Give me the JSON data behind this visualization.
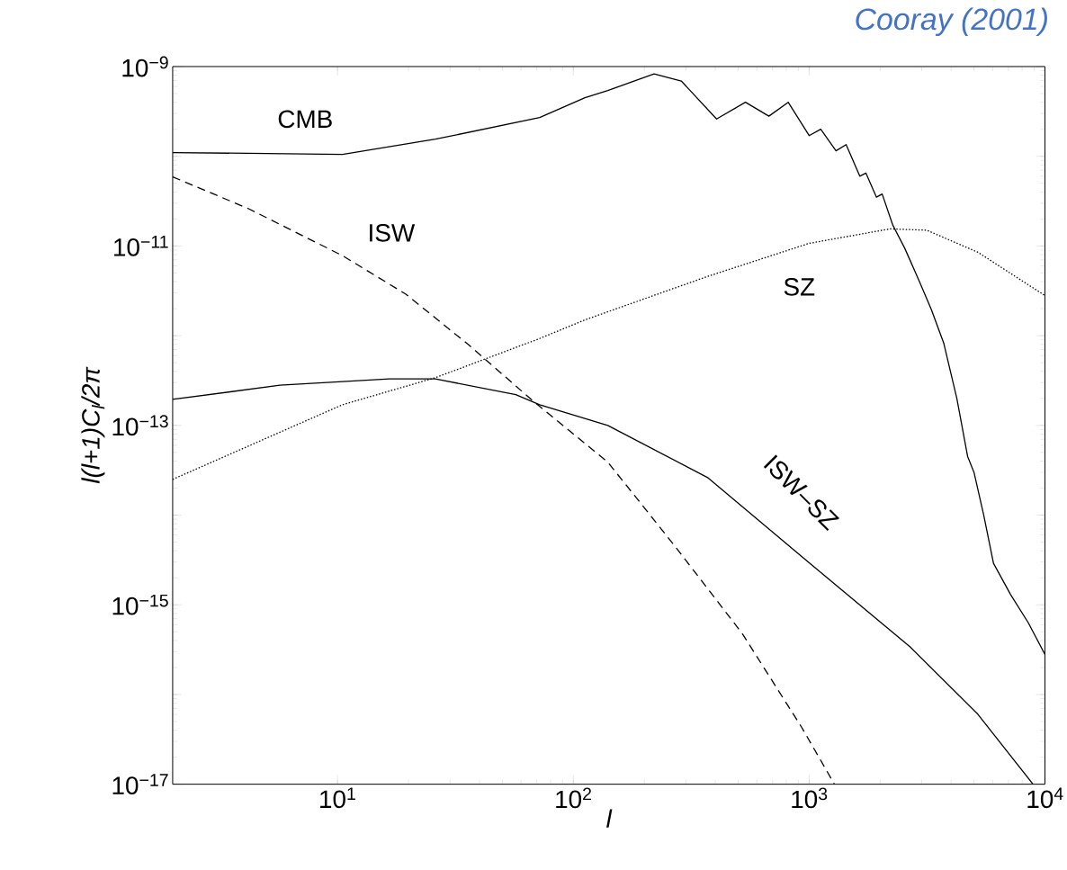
{
  "chart_data": {
    "type": "line",
    "xlabel": "l",
    "ylabel": "l(l+1)C$_{l}$/2π",
    "annotations": [
      "Cooray (2001)"
    ],
    "log": "xy",
    "xlim": [
      2,
      10000
    ],
    "ylim": [
      1e-17,
      1e-09
    ],
    "xticks": [
      {
        "value": 10,
        "label": "10$^{1}$"
      },
      {
        "value": 100,
        "label": "10$^{2}$"
      },
      {
        "value": 1000,
        "label": "10$^{3}$"
      },
      {
        "value": 10000,
        "label": "10$^{4}$"
      }
    ],
    "yticks": [
      {
        "value": 1e-17,
        "label": "10$^{−17}$"
      },
      {
        "value": 1e-16,
        "label": null
      },
      {
        "value": 1e-15,
        "label": "10$^{−15}$"
      },
      {
        "value": 1e-14,
        "label": null
      },
      {
        "value": 1e-13,
        "label": "10$^{−13}$"
      },
      {
        "value": 1e-12,
        "label": null
      },
      {
        "value": 1e-11,
        "label": "10$^{−11}$"
      },
      {
        "value": 1e-10,
        "label": null
      },
      {
        "value": 1e-09,
        "label": "10$^{−9}$"
      }
    ],
    "series": [
      {
        "name": "CMB",
        "color": "#000000",
        "line_style": "solid",
        "x": [
          2,
          10.5,
          26,
          72,
          112,
          140,
          220,
          287,
          405,
          537,
          675,
          815,
          1000,
          1120,
          1300,
          1435,
          1640,
          1740,
          1930,
          2040,
          2265,
          2540,
          2950,
          3300,
          3720,
          4230,
          4700,
          5000,
          5500,
          6050,
          7150,
          8500,
          10000
        ],
        "values": [
          1.1e-10,
          1.05e-10,
          1.55e-10,
          2.7e-10,
          4.5e-10,
          5.4e-10,
          8.3e-10,
          6.9e-10,
          2.6e-10,
          4e-10,
          2.8e-10,
          4e-10,
          1.7e-10,
          2e-10,
          1.15e-10,
          1.35e-10,
          6e-11,
          6.5e-11,
          3.5e-11,
          3.8e-11,
          1.7e-11,
          9.5e-12,
          3.9e-12,
          1.95e-12,
          8.3e-13,
          2e-13,
          4.5e-14,
          3e-14,
          1e-14,
          2.9e-15,
          1.3e-15,
          6.3e-16,
          2.8e-16
        ]
      },
      {
        "name": "ISW",
        "color": "#000000",
        "line_style": "dashed",
        "x": [
          2,
          4.2,
          10.5,
          19.5,
          36,
          67,
          112,
          140,
          268,
          520,
          930,
          1280
        ],
        "values": [
          5.9e-11,
          2.6e-11,
          7.8e-12,
          2.9e-12,
          7.9e-13,
          1.9e-13,
          6.3e-14,
          3.9e-14,
          4.6e-15,
          4.8e-16,
          4.3e-17,
          1e-17
        ]
      },
      {
        "name": "SZ",
        "color": "#000000",
        "line_style": "dotted",
        "x": [
          2,
          10.5,
          26,
          72,
          112,
          373,
          1000,
          2200,
          3150,
          5200,
          10000
        ],
        "values": [
          2.5e-14,
          1.7e-13,
          3.4e-13,
          9.3e-13,
          1.5e-12,
          4.6e-12,
          1.07e-11,
          1.55e-11,
          1.5e-11,
          8.5e-12,
          2.8e-12
        ]
      },
      {
        "name": "ISW–SZ",
        "color": "#000000",
        "line_style": "solid",
        "x": [
          2,
          5.7,
          16.6,
          26,
          57,
          72,
          140,
          373,
          1000,
          2680,
          5200,
          8900
        ],
        "values": [
          1.95e-13,
          2.8e-13,
          3.3e-13,
          3.3e-13,
          2.2e-13,
          1.7e-13,
          1e-13,
          2.6e-14,
          2.95e-15,
          3.4e-16,
          6e-17,
          1e-17
        ]
      }
    ]
  }
}
